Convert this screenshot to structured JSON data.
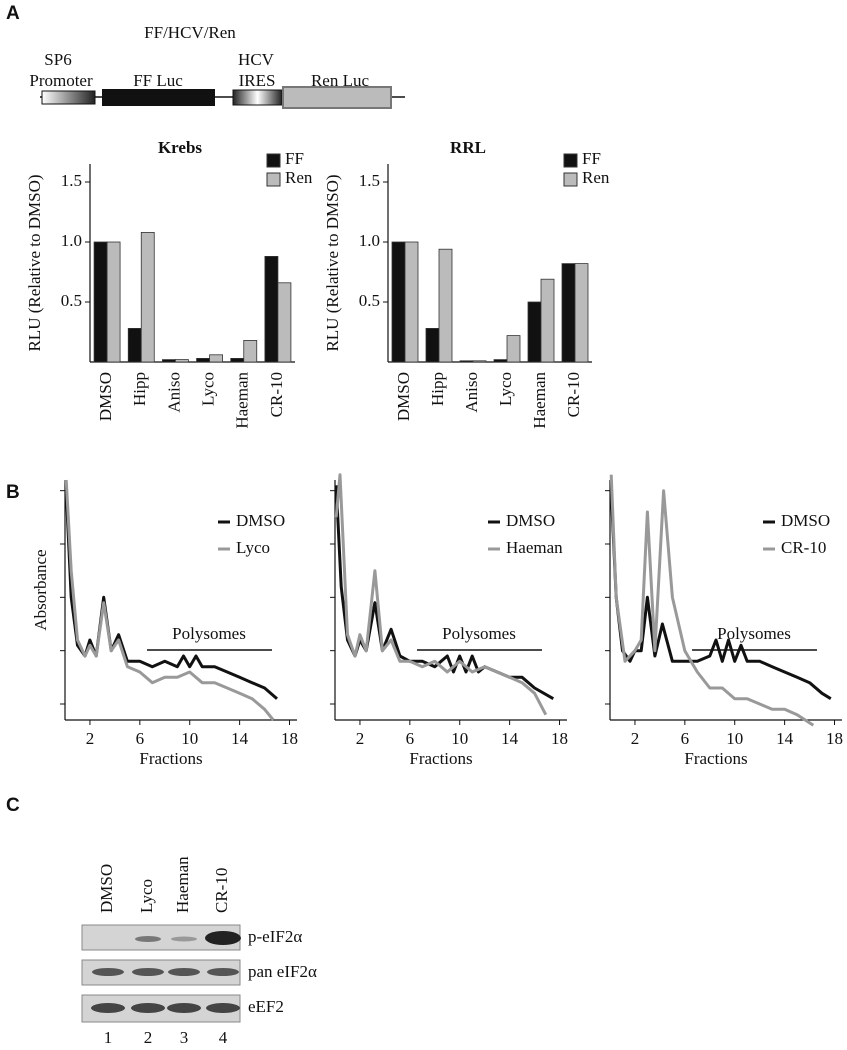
{
  "panels": {
    "a": "A",
    "b": "B",
    "c": "C"
  },
  "construct": {
    "name": "FF/HCV/Ren",
    "promoter": [
      "SP6",
      "Promoter"
    ],
    "ff": "FF Luc",
    "ires": [
      "HCV",
      "IRES"
    ],
    "ren": "Ren Luc"
  },
  "chart_data": [
    {
      "type": "bar",
      "title": "Krebs",
      "y_label": "RLU (Relative to DMSO)",
      "categories": [
        "DMSO",
        "Hipp",
        "Aniso",
        "Lyco",
        "Haeman",
        "CR-10"
      ],
      "series": [
        {
          "name": "FF",
          "color": "#111111",
          "values": [
            1.0,
            0.28,
            0.02,
            0.03,
            0.03,
            0.88
          ]
        },
        {
          "name": "Ren",
          "color": "#bbbbbb",
          "values": [
            1.0,
            1.08,
            0.02,
            0.06,
            0.18,
            0.66
          ]
        }
      ],
      "ylim": [
        0,
        1.65
      ],
      "yticks": [
        0.5,
        {
          "value": 1,
          "label": "1.0"
        },
        1.5
      ]
    },
    {
      "type": "bar",
      "title": "RRL",
      "y_label": "RLU (Relative to DMSO)",
      "categories": [
        "DMSO",
        "Hipp",
        "Aniso",
        "Lyco",
        "Haeman",
        "CR-10"
      ],
      "series": [
        {
          "name": "FF",
          "color": "#111111",
          "values": [
            1.0,
            0.28,
            0.01,
            0.02,
            0.5,
            0.82
          ]
        },
        {
          "name": "Ren",
          "color": "#bbbbbb",
          "values": [
            1.0,
            0.94,
            0.01,
            0.22,
            0.69,
            0.82
          ]
        }
      ],
      "ylim": [
        0,
        1.65
      ],
      "yticks": [
        0.5,
        {
          "value": 1,
          "label": "1.0"
        },
        1.5
      ]
    },
    {
      "type": "line",
      "y_label": "Absorbance",
      "x_label": "Fractions",
      "annotation": "Polysomes",
      "series": [
        {
          "name": "DMSO",
          "color": "#111111",
          "x": [
            0.1,
            0.5,
            1,
            1.6,
            2,
            2.5,
            3.1,
            3.7,
            4.3,
            5,
            6,
            7,
            8,
            9,
            9.5,
            10,
            10.5,
            11,
            12,
            13,
            14,
            15,
            16,
            17
          ],
          "values": [
            5.0,
            3.0,
            2.1,
            1.9,
            2.2,
            1.9,
            3.0,
            2.0,
            2.3,
            1.8,
            1.8,
            1.7,
            1.8,
            1.7,
            1.9,
            1.7,
            1.9,
            1.7,
            1.7,
            1.6,
            1.5,
            1.4,
            1.3,
            1.1
          ]
        },
        {
          "name": "Lyco",
          "color": "#999999",
          "x": [
            0.1,
            0.5,
            1,
            1.6,
            2,
            2.5,
            3.1,
            3.7,
            4.3,
            5,
            6,
            7,
            8,
            9,
            10,
            11,
            12,
            13,
            14,
            15,
            16,
            16.7
          ],
          "values": [
            5.2,
            3.5,
            2.2,
            1.9,
            2.1,
            1.9,
            2.9,
            2.0,
            2.2,
            1.7,
            1.6,
            1.4,
            1.5,
            1.5,
            1.6,
            1.4,
            1.4,
            1.3,
            1.2,
            1.1,
            0.9,
            0.7
          ]
        }
      ],
      "xlim": [
        0,
        18.6
      ],
      "xticks": [
        2,
        6,
        10,
        14,
        18
      ],
      "ylim": [
        0.7,
        5.2
      ],
      "yticks": [
        1,
        2,
        3,
        4,
        5
      ]
    },
    {
      "type": "line",
      "x_label": "Fractions",
      "annotation": "Polysomes",
      "series": [
        {
          "name": "DMSO",
          "color": "#111111",
          "x": [
            0.1,
            0.5,
            1,
            1.6,
            2,
            2.5,
            3.2,
            3.8,
            4.5,
            5.2,
            6,
            7,
            8,
            9,
            9.5,
            10,
            10.5,
            11,
            11.5,
            12,
            13,
            14,
            15,
            16,
            17.5
          ],
          "values": [
            5.1,
            3.2,
            2.2,
            1.9,
            2.2,
            2.0,
            2.9,
            2.0,
            2.4,
            1.9,
            1.8,
            1.8,
            1.7,
            1.9,
            1.6,
            1.9,
            1.6,
            1.9,
            1.6,
            1.7,
            1.6,
            1.5,
            1.5,
            1.3,
            1.1
          ]
        },
        {
          "name": "Haeman",
          "color": "#999999",
          "x": [
            0.1,
            0.4,
            1,
            1.6,
            2,
            2.5,
            3.2,
            3.8,
            4.5,
            5.2,
            6,
            7,
            8,
            9,
            10,
            11,
            12,
            13,
            14,
            15,
            16,
            16.9
          ],
          "values": [
            4.5,
            5.3,
            2.3,
            1.9,
            2.3,
            2.0,
            3.5,
            2.0,
            2.2,
            1.8,
            1.8,
            1.7,
            1.8,
            1.6,
            1.8,
            1.6,
            1.7,
            1.6,
            1.5,
            1.4,
            1.2,
            0.8
          ]
        }
      ],
      "xlim": [
        0,
        18.6
      ],
      "xticks": [
        2,
        6,
        10,
        14,
        18
      ],
      "ylim": [
        0.7,
        5.2
      ],
      "yticks": [
        1,
        2,
        3,
        4,
        5
      ]
    },
    {
      "type": "line",
      "x_label": "Fractions",
      "annotation": "Polysomes",
      "series": [
        {
          "name": "DMSO",
          "color": "#111111",
          "x": [
            0.1,
            0.5,
            1,
            1.6,
            2,
            2.5,
            3,
            3.6,
            4.2,
            5,
            6,
            7,
            8,
            8.5,
            9,
            9.5,
            10,
            10.5,
            11,
            12,
            13,
            14,
            15,
            16,
            17,
            17.7
          ],
          "values": [
            5.0,
            3.0,
            2.0,
            1.8,
            2.0,
            2.0,
            3.0,
            1.9,
            2.5,
            1.8,
            1.8,
            1.8,
            1.9,
            2.2,
            1.8,
            2.2,
            1.8,
            2.1,
            1.8,
            1.8,
            1.7,
            1.6,
            1.5,
            1.4,
            1.2,
            1.1
          ]
        },
        {
          "name": "CR-10",
          "color": "#999999",
          "x": [
            0.1,
            0.5,
            1.2,
            2,
            2.5,
            3,
            3.6,
            4.3,
            5,
            6,
            7,
            8,
            9,
            10,
            11,
            12,
            13,
            14,
            15,
            16.3
          ],
          "values": [
            5.3,
            3.0,
            1.8,
            2.0,
            2.2,
            4.6,
            2.0,
            5.0,
            3.0,
            2.0,
            1.6,
            1.3,
            1.3,
            1.1,
            1.1,
            1.0,
            0.9,
            0.9,
            0.8,
            0.6
          ]
        }
      ],
      "xlim": [
        0,
        18.6
      ],
      "xticks": [
        2,
        6,
        10,
        14,
        18
      ],
      "ylim": [
        0.7,
        5.2
      ],
      "yticks": [
        1,
        2,
        3,
        4,
        5
      ]
    }
  ],
  "blot": {
    "lanes": [
      "DMSO",
      "Lyco",
      "Haeman",
      "CR-10"
    ],
    "rows": [
      "p-eIF2α",
      "pan eIF2α",
      "eEF2"
    ],
    "numbers": [
      "1",
      "2",
      "3",
      "4"
    ]
  }
}
